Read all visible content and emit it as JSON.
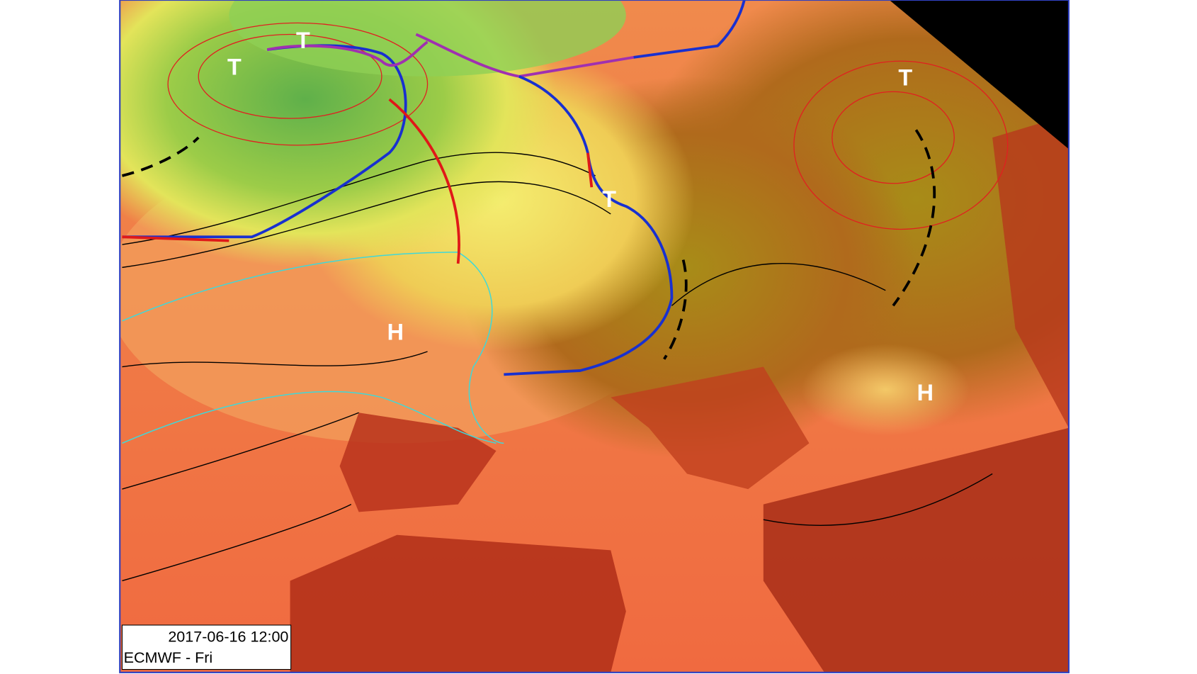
{
  "map": {
    "pressure_labels": [
      {
        "label": "T"
      },
      {
        "label": "T"
      },
      {
        "label": "T"
      },
      {
        "label": "T"
      },
      {
        "label": "H"
      },
      {
        "label": "H"
      }
    ]
  },
  "info_box": {
    "datetime": "2017-06-16 12:00",
    "model": "ECMWF - Fri"
  }
}
